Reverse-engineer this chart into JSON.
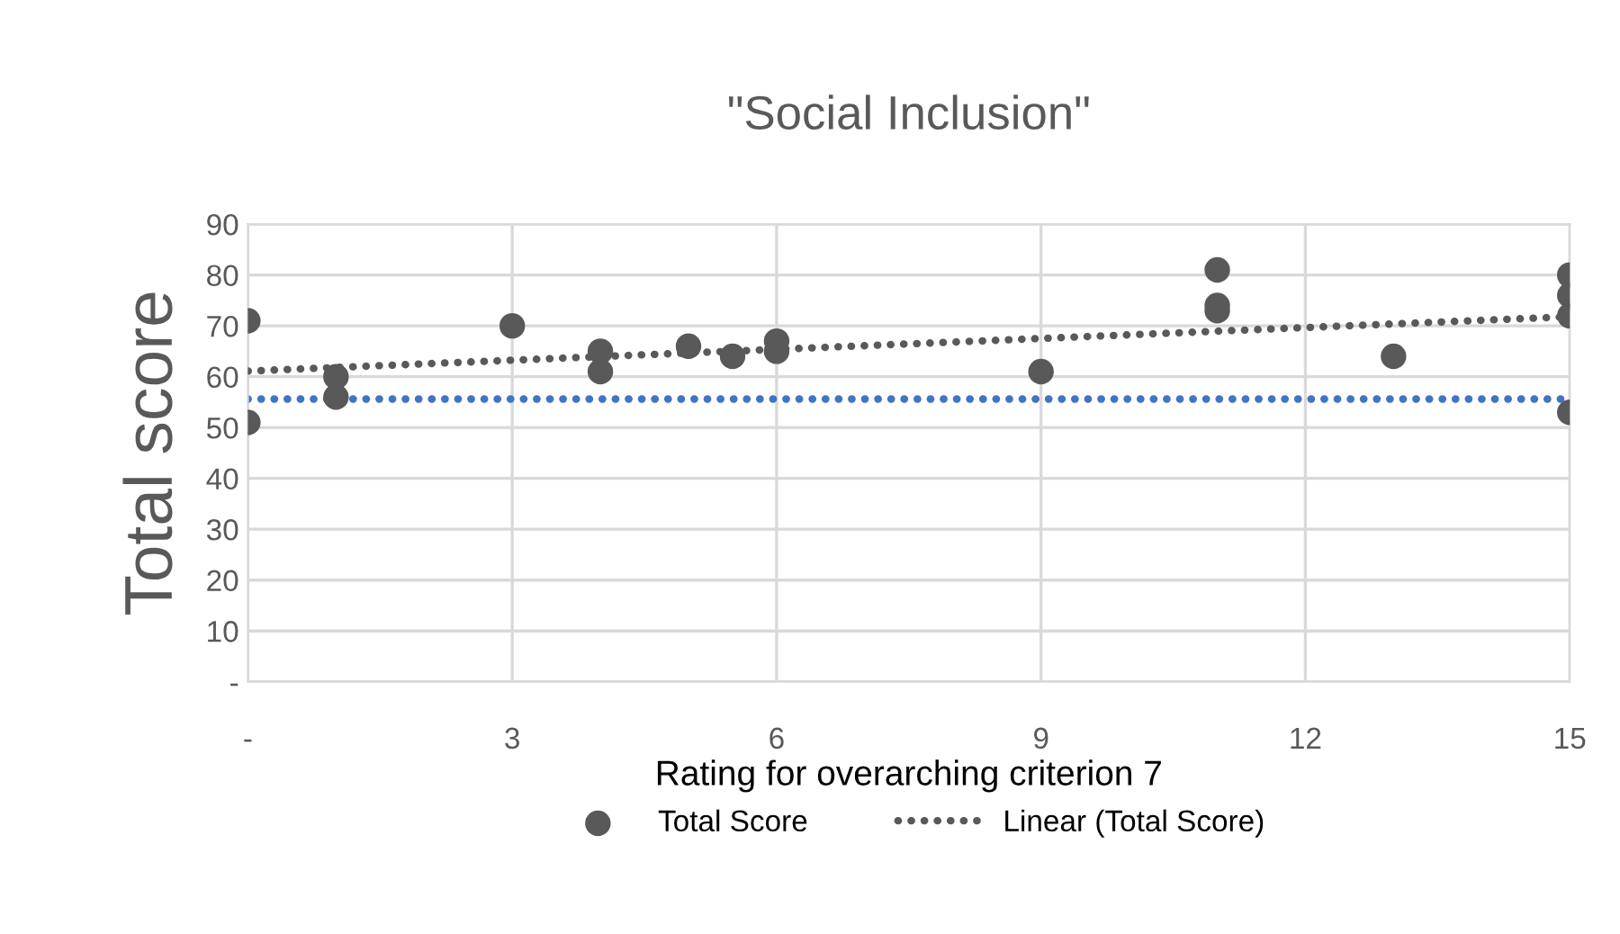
{
  "chart_data": {
    "type": "scatter",
    "title": "\"Social Inclusion\"",
    "xlabel": "Rating for overarching criterion 7",
    "ylabel": "Total score",
    "series": [
      {
        "name": "Total Score",
        "color": "#595959",
        "marker": "circle",
        "x": [
          0,
          0,
          1,
          1,
          3,
          4,
          4,
          5,
          5.5,
          6,
          6,
          9,
          11,
          11,
          11,
          13,
          15,
          15,
          15,
          15
        ],
        "values": [
          71,
          51,
          60,
          56,
          70,
          65,
          61,
          66,
          64,
          67,
          65,
          61,
          81,
          74,
          73,
          64,
          80,
          76,
          72,
          53
        ]
      },
      {
        "name": "Linear (Total Score)",
        "type": "line",
        "color": "#595959",
        "line_style": "dotted",
        "marker": "none",
        "x": [
          0,
          15
        ],
        "values": [
          61.1,
          71.8
        ]
      }
    ],
    "ref_lines": [
      {
        "axis": "y",
        "value": 55.6,
        "color": "#4472c4",
        "line_style": "dotted"
      }
    ],
    "xlim": [
      0,
      15
    ],
    "xticks": [
      {
        "value": 0,
        "label": "-"
      },
      3,
      6,
      9,
      12,
      15
    ],
    "ylim": [
      0,
      90
    ],
    "yticks": [
      {
        "value": 0,
        "label": "-"
      },
      10,
      20,
      30,
      40,
      50,
      60,
      70,
      80,
      90
    ],
    "grid": true,
    "legend": "bottom"
  }
}
